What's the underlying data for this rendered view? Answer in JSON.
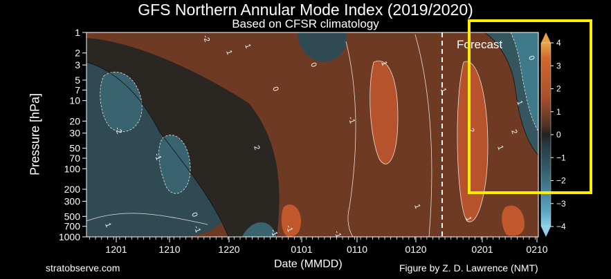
{
  "title": "GFS Northern Annular Mode Index (2019/2020)",
  "subtitle": "Based on CFSR climatology",
  "credit_left": "stratobserve.com",
  "credit_right": "Figure by Z. D. Lawrence (NMT)",
  "colors": {
    "background": "#000000",
    "highlight": "#ffee00",
    "positive": "#c4562b",
    "negative": "#3f6f7d",
    "neutral": "#2b2623"
  },
  "chart_data": {
    "type": "heatmap",
    "xlabel": "Date (MMDD)",
    "ylabel": "Pressure [hPa]",
    "x_ticks": [
      "1201",
      "1210",
      "1220",
      "0101",
      "0110",
      "0120",
      "0201",
      "0210"
    ],
    "y_ticks": [
      1,
      2,
      3,
      5,
      7,
      10,
      20,
      30,
      50,
      70,
      100,
      200,
      300,
      500,
      700,
      1000
    ],
    "y_scale": "log",
    "y_inverted": true,
    "colorbar": {
      "ticks": [
        4,
        3,
        2,
        1,
        0,
        -1,
        -2,
        -3,
        -4
      ],
      "range": [
        -4,
        4
      ]
    },
    "contour_labels": [
      "-2",
      "1",
      "1",
      "0",
      "0",
      "2",
      "1",
      "-1",
      "-1",
      "0",
      "1",
      "2",
      "-2",
      "-1",
      "0",
      "1",
      "-1",
      "-1",
      "1",
      "1",
      "1",
      "2",
      "-1",
      "0",
      "-1",
      "-2"
    ],
    "forecast_label": "Forecast",
    "forecast_start": "0125"
  }
}
